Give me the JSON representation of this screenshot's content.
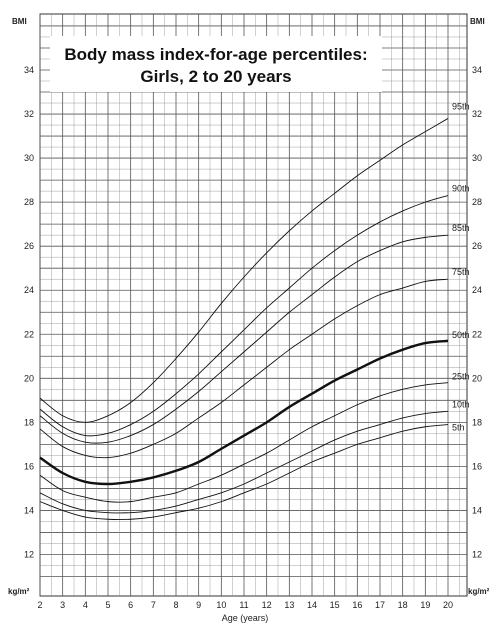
{
  "chart_data": {
    "type": "line",
    "title": "Body mass index-for-age percentiles:",
    "subtitle": "Girls, 2 to 20 years",
    "xlabel": "Age (years)",
    "ylabel": "BMI",
    "ylabel_unit": "kg/m²",
    "xlim": [
      2,
      20.5
    ],
    "ylim": [
      11,
      36
    ],
    "xticks": [
      2,
      3,
      4,
      5,
      6,
      7,
      8,
      9,
      10,
      11,
      12,
      13,
      14,
      15,
      16,
      17,
      18,
      19,
      20
    ],
    "yticks": [
      12,
      14,
      16,
      18,
      20,
      22,
      24,
      26,
      28,
      30,
      32,
      34
    ],
    "grid": true,
    "x": [
      2,
      3,
      4,
      5,
      6,
      7,
      8,
      9,
      10,
      11,
      12,
      13,
      14,
      15,
      16,
      17,
      18,
      19,
      20
    ],
    "series": [
      {
        "name": "95th",
        "values": [
          19.1,
          18.3,
          18.0,
          18.3,
          18.9,
          19.8,
          20.9,
          22.1,
          23.4,
          24.6,
          25.7,
          26.7,
          27.6,
          28.4,
          29.2,
          29.9,
          30.6,
          31.2,
          31.8
        ]
      },
      {
        "name": "90th",
        "values": [
          18.6,
          17.8,
          17.4,
          17.5,
          17.9,
          18.5,
          19.3,
          20.2,
          21.2,
          22.2,
          23.2,
          24.1,
          25.0,
          25.8,
          26.5,
          27.1,
          27.6,
          28.0,
          28.3
        ]
      },
      {
        "name": "85th",
        "values": [
          18.3,
          17.5,
          17.1,
          17.1,
          17.4,
          17.9,
          18.6,
          19.4,
          20.3,
          21.2,
          22.1,
          23.0,
          23.8,
          24.6,
          25.3,
          25.8,
          26.2,
          26.4,
          26.5
        ]
      },
      {
        "name": "75th",
        "values": [
          17.7,
          16.9,
          16.5,
          16.4,
          16.6,
          17.0,
          17.5,
          18.2,
          18.9,
          19.7,
          20.5,
          21.3,
          22.0,
          22.7,
          23.3,
          23.8,
          24.1,
          24.4,
          24.5
        ]
      },
      {
        "name": "50th",
        "values": [
          16.4,
          15.7,
          15.3,
          15.2,
          15.3,
          15.5,
          15.8,
          16.2,
          16.8,
          17.4,
          18.0,
          18.7,
          19.3,
          19.9,
          20.4,
          20.9,
          21.3,
          21.6,
          21.7
        ]
      },
      {
        "name": "25th",
        "values": [
          15.6,
          14.9,
          14.6,
          14.4,
          14.4,
          14.6,
          14.8,
          15.2,
          15.6,
          16.1,
          16.6,
          17.2,
          17.8,
          18.3,
          18.8,
          19.2,
          19.5,
          19.7,
          19.8
        ]
      },
      {
        "name": "10th",
        "values": [
          14.8,
          14.3,
          14.0,
          13.9,
          13.9,
          14.0,
          14.2,
          14.5,
          14.8,
          15.2,
          15.7,
          16.2,
          16.7,
          17.2,
          17.6,
          17.9,
          18.2,
          18.4,
          18.5
        ]
      },
      {
        "name": "5th",
        "values": [
          14.4,
          14.0,
          13.7,
          13.6,
          13.6,
          13.7,
          13.9,
          14.1,
          14.4,
          14.8,
          15.2,
          15.7,
          16.2,
          16.6,
          17.0,
          17.3,
          17.6,
          17.8,
          17.9
        ]
      }
    ],
    "emphasized_series": "50th",
    "legend": "right-side inline labels"
  }
}
